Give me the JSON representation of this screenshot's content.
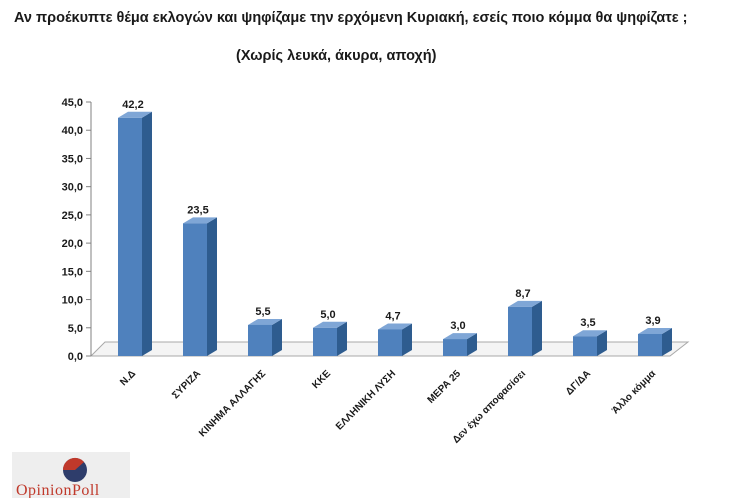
{
  "title": "Αν προέκυπτε θέμα εκλογών και ψηφίζαμε την ερχόμενη Κυριακή, εσείς ποιο κόμμα θα ψηφίζατε ;",
  "subtitle": "(Χωρίς λευκά, άκυρα, αποχή)",
  "logo": {
    "text": "OpinionPoll"
  },
  "chart_data": {
    "type": "bar",
    "categories": [
      "Ν.Δ",
      "ΣΥΡΙΖΑ",
      "ΚΙΝΗΜΑ ΑΛΛΑΓΗΣ",
      "ΚΚΕ",
      "ΕΛΛΗΝΙΚΗ ΛΥΣΗ",
      "ΜΕΡΑ 25",
      "Δεν έχω αποφασίσει",
      "ΔΓ/ΔΑ",
      "Άλλο κόμμα"
    ],
    "values": [
      42.2,
      23.5,
      5.5,
      5.0,
      4.7,
      3.0,
      8.7,
      3.5,
      3.9
    ],
    "value_labels": [
      "42,2",
      "23,5",
      "5,5",
      "5,0",
      "4,7",
      "3,0",
      "8,7",
      "3,5",
      "3,9"
    ],
    "yticks": [
      "0,0",
      "5,0",
      "10,0",
      "15,0",
      "20,0",
      "25,0",
      "30,0",
      "35,0",
      "40,0",
      "45,0"
    ],
    "ylim": [
      0,
      45
    ],
    "grid": false,
    "colors": {
      "bar_front": "#4f81bd",
      "bar_side": "#2e5c8f",
      "bar_top": "#7fa6d6"
    }
  }
}
